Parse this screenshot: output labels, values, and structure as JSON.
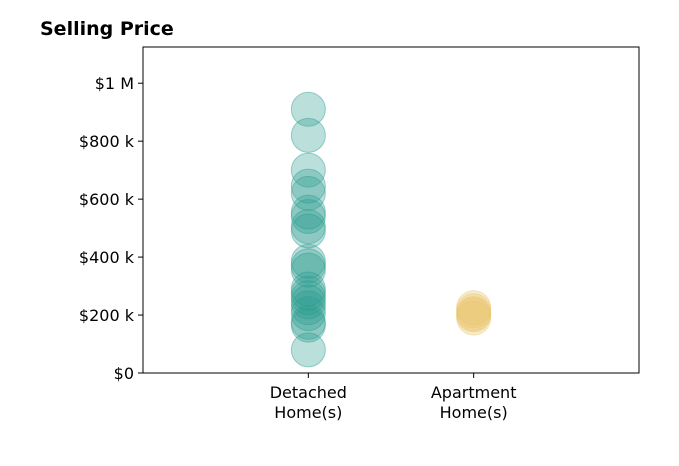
{
  "chart_data": {
    "type": "scatter",
    "title": "Selling Price",
    "xlabel": "",
    "ylabel": "",
    "categories": [
      "Detached\nHome(s)",
      "Apartment\nHome(s)"
    ],
    "xlim": [
      -1,
      2
    ],
    "ylim": [
      0,
      1125000
    ],
    "yticks": [
      {
        "value": 0,
        "label": "$0"
      },
      {
        "value": 200000,
        "label": "$200 k"
      },
      {
        "value": 400000,
        "label": "$400 k"
      },
      {
        "value": 600000,
        "label": "$600 k"
      },
      {
        "value": 800000,
        "label": "$800 k"
      },
      {
        "value": 1000000,
        "label": "$1 M"
      }
    ],
    "grid": false,
    "series": [
      {
        "category": "Detached\nHome(s)",
        "color": "#2a9d8f",
        "values": [
          80000,
          165000,
          175000,
          205000,
          225000,
          245000,
          260000,
          275000,
          290000,
          355000,
          370000,
          385000,
          490000,
          505000,
          540000,
          555000,
          620000,
          645000,
          700000,
          820000,
          910000
        ]
      },
      {
        "category": "Apartment\nHome(s)",
        "color": "#e9c46a",
        "values": [
          190000,
          200000,
          205000,
          215000,
          225000
        ]
      }
    ]
  }
}
